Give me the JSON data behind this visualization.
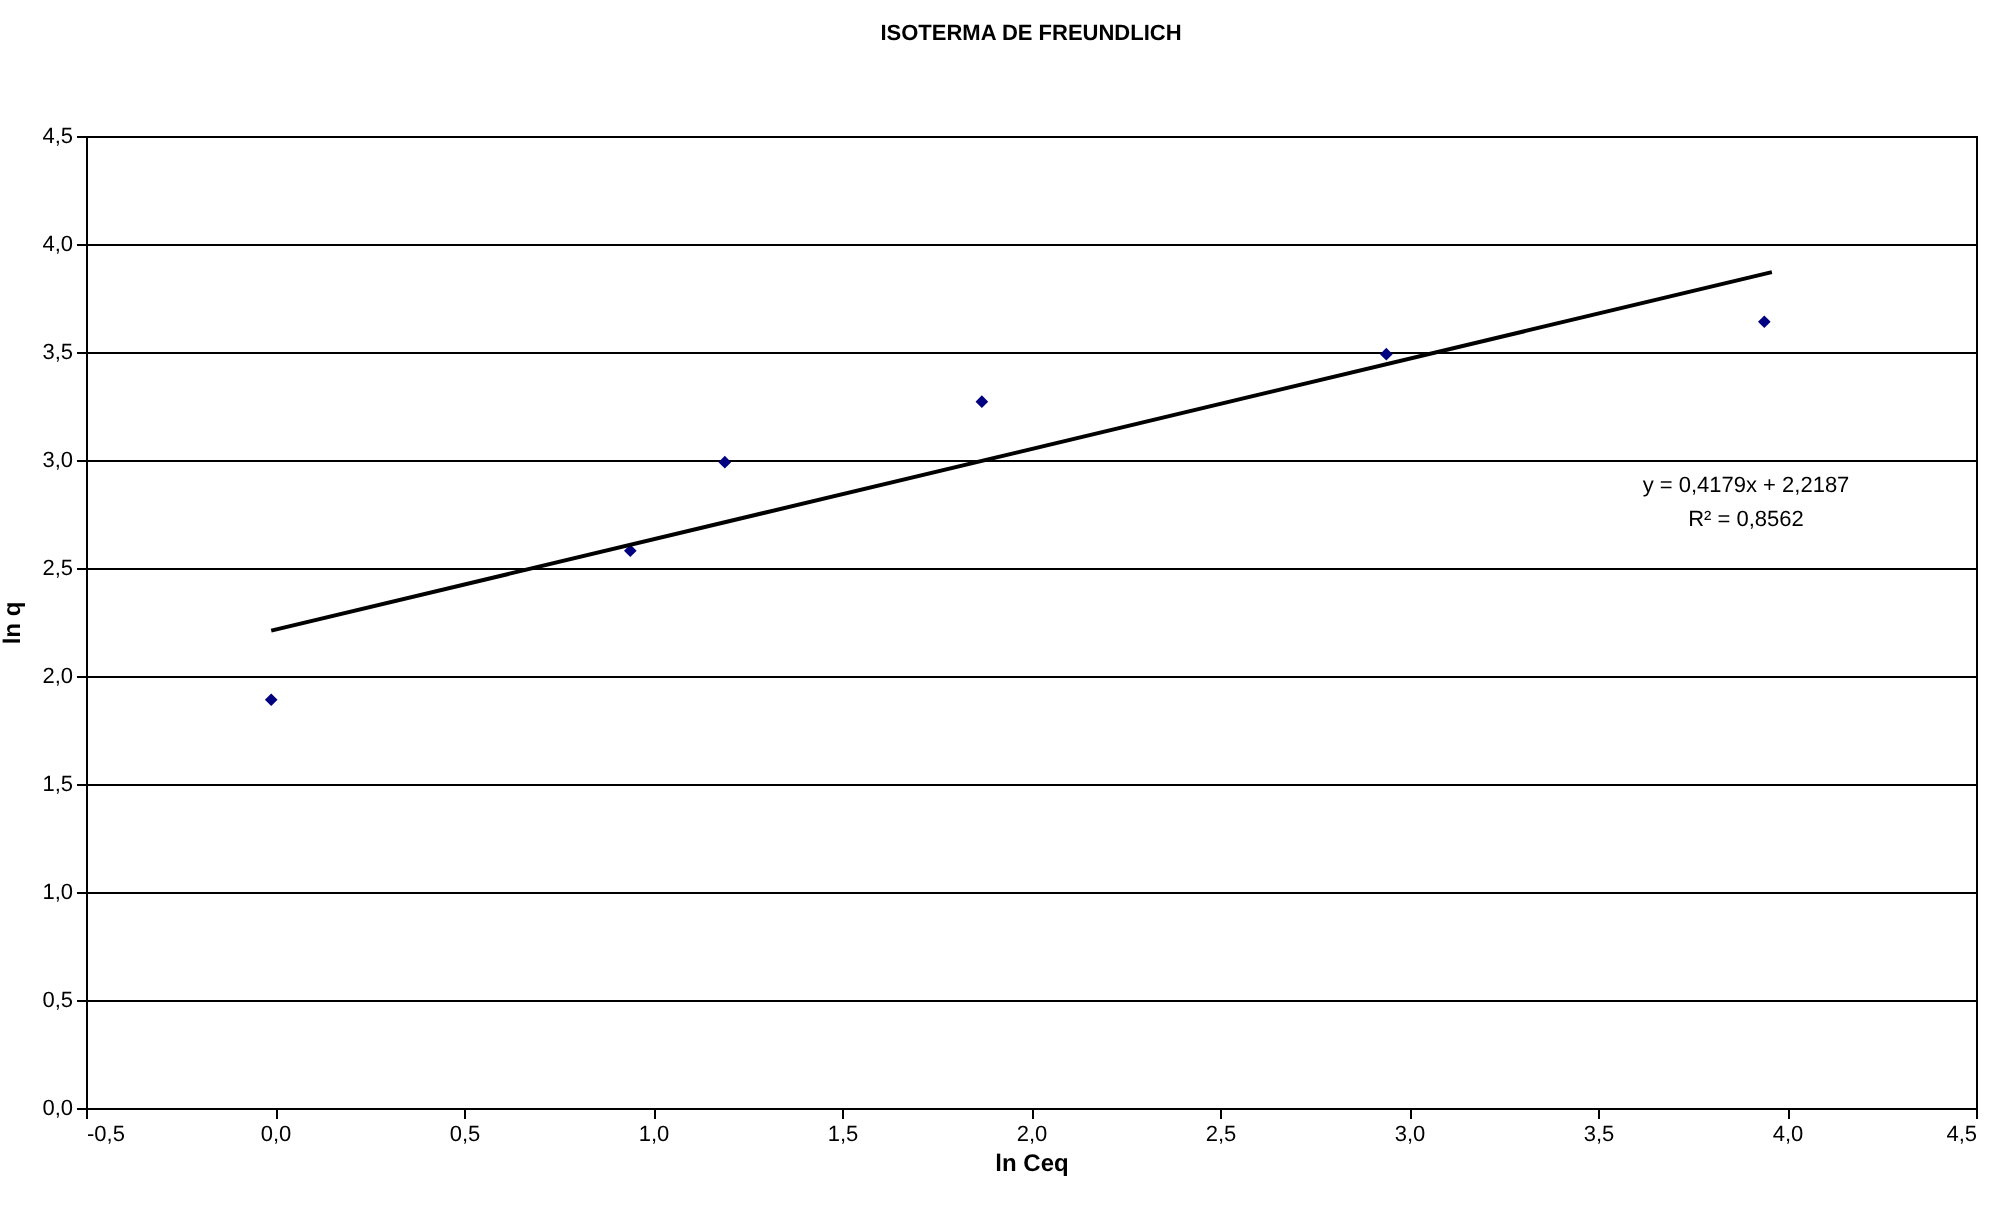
{
  "chart_data": {
    "type": "scatter",
    "title": "ISOTERMA DE FREUNDLICH",
    "xlabel": "ln Ceq",
    "ylabel": "ln q",
    "series": [
      {
        "type": "scatter",
        "color": "#000080",
        "marker": "diamond",
        "x": [
          -0.01,
          0.94,
          1.19,
          1.87,
          2.94,
          3.94
        ],
        "values": [
          1.89,
          2.58,
          2.99,
          3.27,
          3.49,
          3.64
        ]
      },
      {
        "type": "line",
        "color": "#000000",
        "marker": "none",
        "line_style": "solid",
        "x": [
          -0.01,
          3.96
        ],
        "values": [
          2.21,
          3.87
        ]
      }
    ],
    "annotations": [
      "y = 0,4179x + 2,2187",
      "R² = 0,8562"
    ],
    "xlim": [
      -0.5,
      4.5
    ],
    "ylim": [
      0,
      4.5
    ],
    "xticks": [
      {
        "value": -0.5,
        "label": "-0,5"
      },
      {
        "value": 0,
        "label": "0,0"
      },
      {
        "value": 0.5,
        "label": "0,5"
      },
      {
        "value": 1,
        "label": "1,0"
      },
      {
        "value": 1.5,
        "label": "1,5"
      },
      {
        "value": 2,
        "label": "2,0"
      },
      {
        "value": 2.5,
        "label": "2,5"
      },
      {
        "value": 3,
        "label": "3,0"
      },
      {
        "value": 3.5,
        "label": "3,5"
      },
      {
        "value": 4,
        "label": "4,0"
      },
      {
        "value": 4.5,
        "label": "4,5"
      }
    ],
    "yticks": [
      {
        "value": 0,
        "label": "0,0"
      },
      {
        "value": 0.5,
        "label": "0,5"
      },
      {
        "value": 1,
        "label": "1,0"
      },
      {
        "value": 1.5,
        "label": "1,5"
      },
      {
        "value": 2,
        "label": "2,0"
      },
      {
        "value": 2.5,
        "label": "2,5"
      },
      {
        "value": 3,
        "label": "3,0"
      },
      {
        "value": 3.5,
        "label": "3,5"
      },
      {
        "value": 4,
        "label": "4,0"
      },
      {
        "value": 4.5,
        "label": "4,5"
      }
    ],
    "grid": "y"
  }
}
